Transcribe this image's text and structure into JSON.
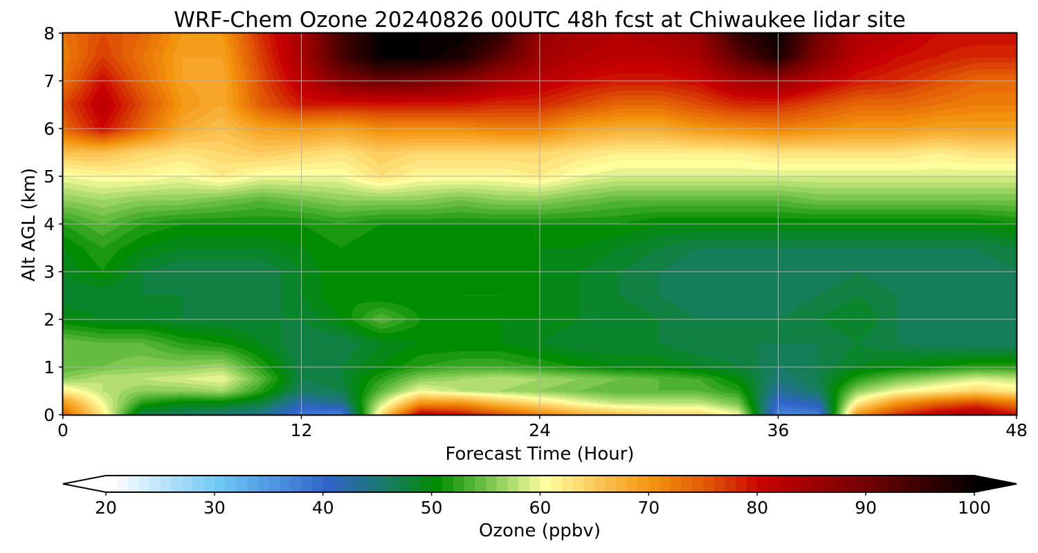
{
  "chart_data": {
    "type": "heatmap",
    "title": "WRF-Chem Ozone  20240826 00UTC 48h fcst at Chiwaukee lidar site",
    "xlabel": "Forecast Time (Hour)",
    "ylabel": "Alt AGL (km)",
    "xlim": [
      0,
      48
    ],
    "ylim": [
      0,
      8
    ],
    "xticks": [
      "0",
      "12",
      "24",
      "36",
      "48"
    ],
    "yticks": [
      "0",
      "1",
      "2",
      "3",
      "4",
      "5",
      "6",
      "7",
      "8"
    ],
    "grid": true,
    "colorbar": {
      "label": "Ozone  (ppbv)",
      "range": [
        20,
        100
      ],
      "ticks": [
        "20",
        "30",
        "40",
        "50",
        "60",
        "70",
        "80",
        "90",
        "100"
      ],
      "extend": "both",
      "colors": {
        "20": "#ffffff",
        "30": "#6ec6f5",
        "40": "#2f63c8",
        "45": "#1a7a6e",
        "50": "#008c00",
        "55": "#7ec850",
        "60": "#ffffa0",
        "65": "#fcc454",
        "70": "#f3920c",
        "75": "#e05505",
        "80": "#c80000",
        "90": "#6e0000",
        "100": "#000000"
      }
    },
    "x": [
      0,
      2,
      4,
      6,
      8,
      10,
      12,
      14,
      16,
      18,
      20,
      22,
      24,
      26,
      28,
      30,
      32,
      34,
      36,
      38,
      40,
      42,
      44,
      46,
      48
    ],
    "y": [
      0,
      0.25,
      0.5,
      0.75,
      1,
      1.5,
      2,
      2.5,
      3,
      3.5,
      4,
      4.5,
      5,
      5.5,
      6,
      6.5,
      7,
      7.5,
      8
    ],
    "z_ppbv": [
      [
        75,
        62,
        47,
        46,
        45,
        44,
        38,
        37,
        63,
        82,
        80,
        76,
        72,
        68,
        66,
        64,
        64,
        60,
        37,
        37,
        70,
        78,
        82,
        84,
        80
      ],
      [
        70,
        60,
        52,
        50,
        50,
        48,
        42,
        44,
        58,
        70,
        70,
        66,
        63,
        60,
        58,
        58,
        58,
        55,
        40,
        42,
        62,
        70,
        74,
        76,
        72
      ],
      [
        62,
        58,
        56,
        56,
        57,
        52,
        46,
        47,
        54,
        60,
        58,
        57,
        56,
        55,
        54,
        54,
        54,
        52,
        43,
        46,
        56,
        60,
        62,
        64,
        62
      ],
      [
        56,
        58,
        58,
        59,
        60,
        54,
        47,
        48,
        52,
        56,
        57,
        58,
        57,
        56,
        55,
        54,
        53,
        50,
        45,
        47,
        52,
        55,
        57,
        59,
        58
      ],
      [
        54,
        55,
        56,
        56,
        57,
        52,
        47,
        48,
        50,
        52,
        53,
        53,
        52,
        51,
        50,
        50,
        49,
        48,
        46,
        47,
        49,
        50,
        51,
        52,
        52
      ],
      [
        55,
        54,
        54,
        52,
        51,
        49,
        47,
        47,
        49,
        50,
        50,
        50,
        49,
        48,
        48,
        48,
        47,
        47,
        47,
        47,
        48,
        47,
        46,
        46,
        46
      ],
      [
        50,
        49,
        49,
        48,
        48,
        48,
        48,
        50,
        54,
        51,
        50,
        50,
        50,
        49,
        49,
        48,
        47,
        47,
        47,
        48,
        49,
        47,
        46,
        46,
        46
      ],
      [
        48,
        48,
        48,
        48,
        47,
        47,
        49,
        51,
        50,
        50,
        51,
        51,
        50,
        49,
        48,
        47,
        46,
        46,
        46,
        47,
        48,
        47,
        46,
        46,
        46
      ],
      [
        49,
        51,
        48,
        47,
        47,
        47,
        49,
        51,
        51,
        50,
        50,
        50,
        50,
        49,
        48,
        47,
        46,
        46,
        46,
        46,
        47,
        46,
        46,
        46,
        47
      ],
      [
        50,
        52,
        50,
        49,
        49,
        49,
        50,
        51,
        50,
        50,
        50,
        50,
        50,
        50,
        49,
        48,
        47,
        47,
        47,
        47,
        47,
        47,
        47,
        47,
        48
      ],
      [
        52,
        54,
        52,
        51,
        51,
        51,
        51,
        52,
        51,
        51,
        51,
        51,
        51,
        51,
        51,
        50,
        50,
        50,
        50,
        50,
        50,
        50,
        50,
        50,
        51
      ],
      [
        56,
        57,
        56,
        56,
        55,
        54,
        55,
        56,
        56,
        56,
        55,
        56,
        56,
        55,
        54,
        54,
        54,
        54,
        54,
        55,
        55,
        55,
        55,
        55,
        55
      ],
      [
        60,
        61,
        61,
        60,
        62,
        60,
        60,
        60,
        63,
        61,
        61,
        61,
        62,
        60,
        59,
        59,
        59,
        59,
        59,
        59,
        59,
        59,
        59,
        59,
        59
      ],
      [
        66,
        66,
        64,
        63,
        64,
        65,
        64,
        63,
        65,
        64,
        64,
        64,
        64,
        63,
        62,
        62,
        62,
        62,
        63,
        63,
        63,
        63,
        62,
        63,
        63
      ],
      [
        74,
        80,
        74,
        68,
        66,
        69,
        70,
        69,
        71,
        71,
        71,
        72,
        72,
        69,
        68,
        68,
        70,
        71,
        72,
        71,
        70,
        70,
        69,
        69,
        69
      ],
      [
        76,
        82,
        76,
        70,
        68,
        75,
        79,
        79,
        79,
        79,
        79,
        78,
        78,
        76,
        74,
        74,
        76,
        78,
        78,
        76,
        74,
        74,
        73,
        72,
        72
      ],
      [
        73,
        80,
        74,
        69,
        68,
        76,
        82,
        88,
        91,
        90,
        88,
        84,
        82,
        80,
        79,
        79,
        80,
        84,
        86,
        82,
        79,
        78,
        76,
        74,
        74
      ],
      [
        72,
        77,
        73,
        69,
        69,
        77,
        84,
        94,
        100,
        100,
        98,
        92,
        85,
        83,
        82,
        82,
        84,
        92,
        98,
        88,
        82,
        80,
        79,
        78,
        78
      ],
      [
        73,
        76,
        74,
        70,
        70,
        78,
        84,
        94,
        100,
        100,
        100,
        96,
        86,
        84,
        83,
        84,
        86,
        96,
        100,
        90,
        83,
        82,
        80,
        80,
        80
      ]
    ]
  }
}
